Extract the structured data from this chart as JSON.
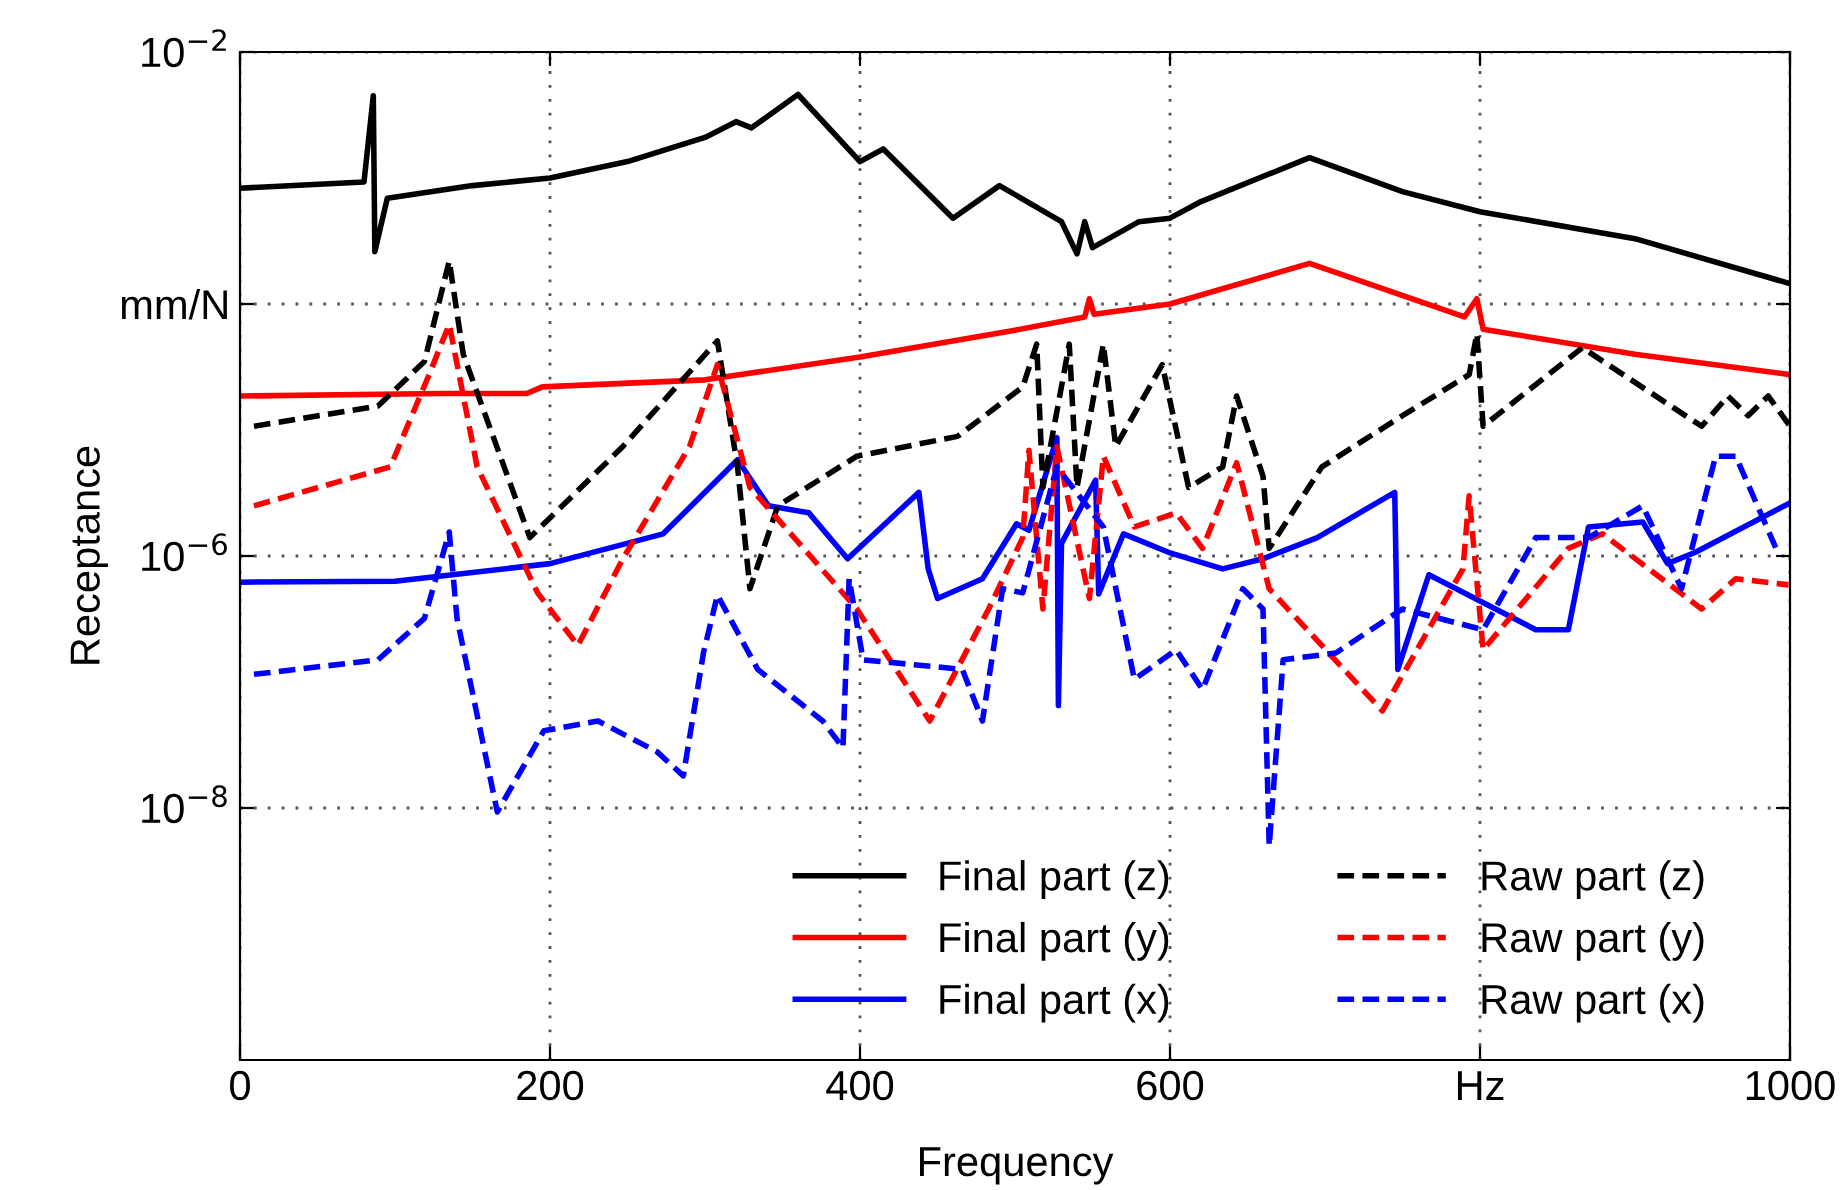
{
  "chart_data": {
    "type": "line",
    "xlabel": "Frequency",
    "ylabel": "Receptance",
    "log": "y",
    "grid": true,
    "legend": "lower right",
    "marker": "none",
    "xlim": [
      0,
      1000
    ],
    "xticks": [
      0,
      200,
      400,
      600,
      {
        "value": 800,
        "label": "Hz"
      },
      1000
    ],
    "ylim": [
      1e-10,
      0.01
    ],
    "yticks": [
      {
        "value": 1e-08,
        "label": "10$^{−8}$"
      },
      {
        "value": 1e-06,
        "label": "10$^{−6}$"
      },
      {
        "value": 0.0001,
        "label": "mm/N"
      },
      {
        "value": 0.01,
        "label": "10$^{−2}$"
      }
    ],
    "series": [
      {
        "name": "Final part (z)",
        "color": "#000000",
        "line_style": "solid",
        "x": [
          0,
          80,
          86,
          87,
          95,
          150,
          200,
          250,
          300,
          320,
          330,
          360,
          400,
          415,
          460,
          490,
          530,
          540,
          545,
          550,
          580,
          600,
          620,
          690,
          750,
          800,
          900,
          1000
        ],
        "values": [
          0.00083,
          0.00093,
          0.0045,
          0.00026,
          0.00069,
          0.00087,
          0.001,
          0.00135,
          0.0021,
          0.0028,
          0.0025,
          0.0046,
          0.00135,
          0.0017,
          0.00048,
          0.00087,
          0.00045,
          0.00025,
          0.00045,
          0.00028,
          0.00045,
          0.00048,
          0.00065,
          0.00145,
          0.00078,
          0.00054,
          0.00033,
          0.000145
        ]
      },
      {
        "name": "Final part (y)",
        "color": "#ff0000",
        "line_style": "solid",
        "x": [
          0,
          130,
          185,
          195,
          300,
          400,
          500,
          545,
          548,
          551,
          600,
          690,
          790,
          798,
          802,
          900,
          1000
        ],
        "values": [
          1.86e-05,
          1.95e-05,
          1.95e-05,
          2.2e-05,
          2.5e-05,
          3.8e-05,
          6.2e-05,
          7.9e-05,
          0.00011,
          8.3e-05,
          0.0001,
          0.00021,
          7.9e-05,
          0.00011,
          6.3e-05,
          4e-05,
          2.75e-05
        ]
      },
      {
        "name": "Final part (x)",
        "color": "#0000ff",
        "line_style": "solid",
        "x": [
          0,
          100,
          200,
          273,
          321,
          341,
          367,
          392,
          438,
          444,
          450,
          479,
          501,
          509,
          527,
          528,
          530,
          552,
          554,
          570,
          599,
          634,
          660,
          695,
          745,
          747,
          767,
          836,
          857,
          870,
          905,
          921,
          939,
          999
        ],
        "values": [
          6.2e-07,
          6.3e-07,
          8.7e-07,
          1.5e-06,
          5.8e-06,
          2.5e-06,
          2.2e-06,
          9.5e-07,
          3.2e-06,
          7.9e-07,
          4.6e-07,
          6.6e-07,
          1.8e-06,
          1.6e-06,
          8.7e-06,
          6.5e-08,
          1.26e-06,
          4e-06,
          5e-07,
          1.5e-06,
          1.07e-06,
          7.9e-07,
          9.5e-07,
          1.4e-06,
          3.2e-06,
          1.26e-07,
          7.1e-07,
          2.6e-07,
          2.6e-07,
          1.7e-06,
          1.86e-06,
          8.7e-07,
          1.07e-06,
          2.6e-06
        ]
      },
      {
        "name": "Raw part (z)",
        "color": "#000000",
        "line_style": "dashed",
        "x": [
          9,
          89,
          119,
          135,
          144,
          187,
          247,
          308,
          321,
          329,
          347,
          398,
          463,
          505,
          514,
          518,
          535,
          540,
          557,
          565,
          595,
          612,
          634,
          643,
          660,
          664,
          698,
          750,
          793,
          798,
          802,
          866,
          943,
          960,
          973,
          986,
          1000
        ],
        "values": [
          1.07e-05,
          1.55e-05,
          3.5e-05,
          0.00022,
          4e-05,
          1.4e-06,
          7.4e-06,
          5.1e-05,
          5.1e-06,
          5.5e-07,
          2.5e-06,
          6.2e-06,
          8.9e-06,
          2.2e-05,
          4.8e-05,
          3.5e-06,
          4.8e-05,
          3.5e-06,
          4.8e-05,
          7.4e-06,
          3.3e-05,
          3.5e-06,
          5.1e-06,
          1.86e-05,
          4.3e-06,
          1.15e-06,
          5.1e-06,
          1.3e-05,
          2.75e-05,
          5.8e-05,
          1.07e-05,
          4.5e-05,
          1.07e-05,
          1.86e-05,
          1.3e-05,
          1.86e-05,
          1.07e-05
        ]
      },
      {
        "name": "Raw part (y)",
        "color": "#ff0000",
        "line_style": "dashed",
        "x": [
          9,
          97,
          122,
          135,
          153,
          192,
          218,
          247,
          290,
          308,
          329,
          398,
          445,
          483,
          505,
          509,
          518,
          527,
          548,
          557,
          577,
          604,
          621,
          643,
          664,
          737,
          789,
          793,
          802,
          857,
          879,
          943,
          965,
          999
        ],
        "values": [
          2.5e-06,
          5.1e-06,
          2.75e-05,
          6.9e-05,
          5.1e-06,
          5.1e-07,
          1.95e-07,
          9.5e-07,
          7.4e-06,
          3.3e-05,
          3.5e-06,
          3.8e-07,
          4.9e-08,
          3.8e-07,
          1.4e-06,
          6.9e-06,
          3.8e-07,
          7.4e-06,
          4.6e-07,
          6.2e-06,
          1.7e-06,
          2.2e-06,
          1.15e-06,
          5.5e-06,
          5.5e-07,
          5.9e-08,
          7.9e-07,
          3e-06,
          1.8e-07,
          1.15e-06,
          1.5e-06,
          3.8e-07,
          6.6e-07,
          5.9e-07
        ]
      },
      {
        "name": "Raw part (x)",
        "color": "#0000ff",
        "line_style": "dashed",
        "x": [
          9,
          89,
          119,
          135,
          140,
          166,
          196,
          231,
          269,
          286,
          299,
          308,
          334,
          376,
          389,
          393,
          402,
          466,
          479,
          492,
          505,
          527,
          557,
          577,
          604,
          621,
          647,
          660,
          664,
          673,
          707,
          750,
          802,
          836,
          870,
          905,
          930,
          952,
          965,
          991
        ],
        "values": [
          1.15e-07,
          1.5e-07,
          3.2e-07,
          1.55e-06,
          3.2e-07,
          9.3e-09,
          4.1e-08,
          4.9e-08,
          2.8e-08,
          1.8e-08,
          1.7e-07,
          4.9e-07,
          1.26e-07,
          4.9e-08,
          3e-08,
          6.6e-07,
          1.5e-07,
          1.26e-07,
          4.9e-08,
          5.5e-07,
          5.1e-07,
          5.1e-06,
          1.7e-06,
          1.05e-07,
          1.8e-07,
          8.7e-08,
          5.5e-07,
          3.8e-07,
          5e-09,
          1.5e-07,
          1.7e-07,
          3.8e-07,
          2.6e-07,
          1.4e-06,
          1.4e-06,
          2.5e-06,
          5.5e-07,
          6.2e-06,
          6.2e-06,
          1.15e-06
        ]
      }
    ]
  }
}
